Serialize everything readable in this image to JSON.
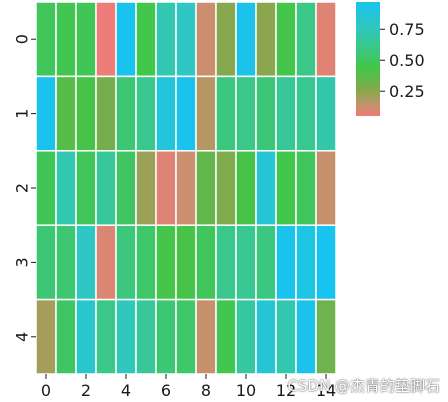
{
  "chart_data": {
    "type": "heatmap",
    "rows": [
      "0",
      "1",
      "2",
      "3",
      "4"
    ],
    "columns": [
      "0",
      "1",
      "2",
      "3",
      "4",
      "5",
      "6",
      "7",
      "8",
      "9",
      "10",
      "11",
      "12",
      "13",
      "14"
    ],
    "x_tick_labels": [
      "0",
      "2",
      "4",
      "6",
      "8",
      "10",
      "12",
      "14"
    ],
    "y_tick_labels": [
      "0",
      "1",
      "2",
      "3",
      "4"
    ],
    "values": [
      [
        0.48,
        0.45,
        0.47,
        0.05,
        0.97,
        0.44,
        0.72,
        0.78,
        0.12,
        0.26,
        0.95,
        0.25,
        0.43,
        0.6,
        0.08
      ],
      [
        0.96,
        0.38,
        0.42,
        0.3,
        0.55,
        0.62,
        0.88,
        0.96,
        0.16,
        0.58,
        0.6,
        0.56,
        0.65,
        0.63,
        0.7
      ],
      [
        0.47,
        0.72,
        0.48,
        0.65,
        0.5,
        0.22,
        0.08,
        0.12,
        0.35,
        0.28,
        0.42,
        0.85,
        0.44,
        0.48,
        0.13
      ],
      [
        0.55,
        0.54,
        0.78,
        0.09,
        0.57,
        0.52,
        0.43,
        0.42,
        0.48,
        0.62,
        0.63,
        0.58,
        0.96,
        0.92,
        0.97
      ],
      [
        0.2,
        0.5,
        0.82,
        0.6,
        0.76,
        0.65,
        0.55,
        0.52,
        0.13,
        0.45,
        0.68,
        0.85,
        0.72,
        0.95,
        0.32
      ]
    ],
    "vmin": 0.05,
    "vmax": 0.97,
    "colorbar_ticks": [
      0.25,
      0.5,
      0.75
    ],
    "colorbar_tick_labels": [
      "0.25",
      "0.50",
      "0.75"
    ],
    "colormap": {
      "stops": [
        {
          "at": 0.0,
          "color": "#ee7c78"
        },
        {
          "at": 0.1,
          "color": "#c0936b"
        },
        {
          "at": 0.22,
          "color": "#8aa64e"
        },
        {
          "at": 0.42,
          "color": "#42c64a"
        },
        {
          "at": 0.6,
          "color": "#3ac788"
        },
        {
          "at": 0.78,
          "color": "#2fc7c0"
        },
        {
          "at": 1.0,
          "color": "#19c3f0"
        }
      ]
    },
    "cell_border_color": "#ffffff",
    "title": "",
    "xlabel": "",
    "ylabel": ""
  },
  "watermark": {
    "text": "CSDN @杰青的垫脚石"
  }
}
